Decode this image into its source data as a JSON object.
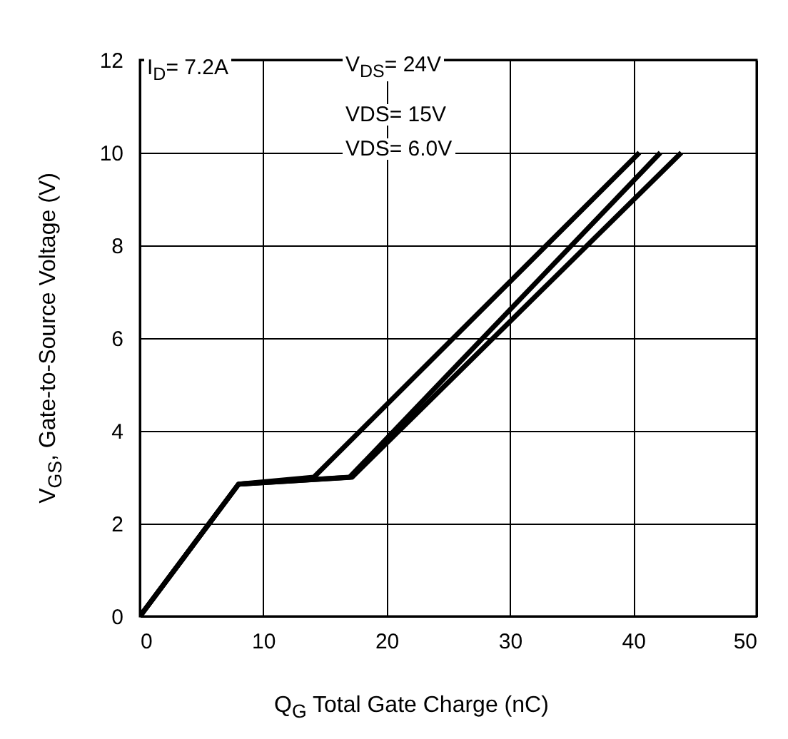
{
  "chart_data": {
    "type": "line",
    "xlabel": "Q$_{G}$  Total Gate Charge (nC)",
    "ylabel": "V$_{GS}$, Gate-to-Source Voltage (V)",
    "xlim": [
      0,
      50
    ],
    "xticks": [
      0,
      10,
      20,
      30,
      40,
      50
    ],
    "ylim": [
      0,
      12
    ],
    "yticks": [
      0,
      2,
      4,
      6,
      8,
      10,
      12
    ],
    "grid": true,
    "legend": false,
    "marker": "none",
    "line_style": "solid",
    "annotations": [
      "I$_{D}$= 7.2A",
      "V$_{DS}$= 24V",
      "VDS= 15V",
      "VDS= 6.0V"
    ],
    "series": [
      {
        "color": "#000000",
        "x": [
          0,
          8,
          14.1,
          40.5
        ],
        "values": [
          0,
          2.85,
          3.0,
          10
        ]
      },
      {
        "color": "#000000",
        "x": [
          0,
          8,
          17.0,
          42.2
        ],
        "values": [
          0,
          2.85,
          3.0,
          10
        ]
      },
      {
        "color": "#000000",
        "x": [
          0,
          8,
          17.2,
          43.9
        ],
        "values": [
          0,
          2.85,
          3.0,
          10
        ]
      }
    ]
  }
}
